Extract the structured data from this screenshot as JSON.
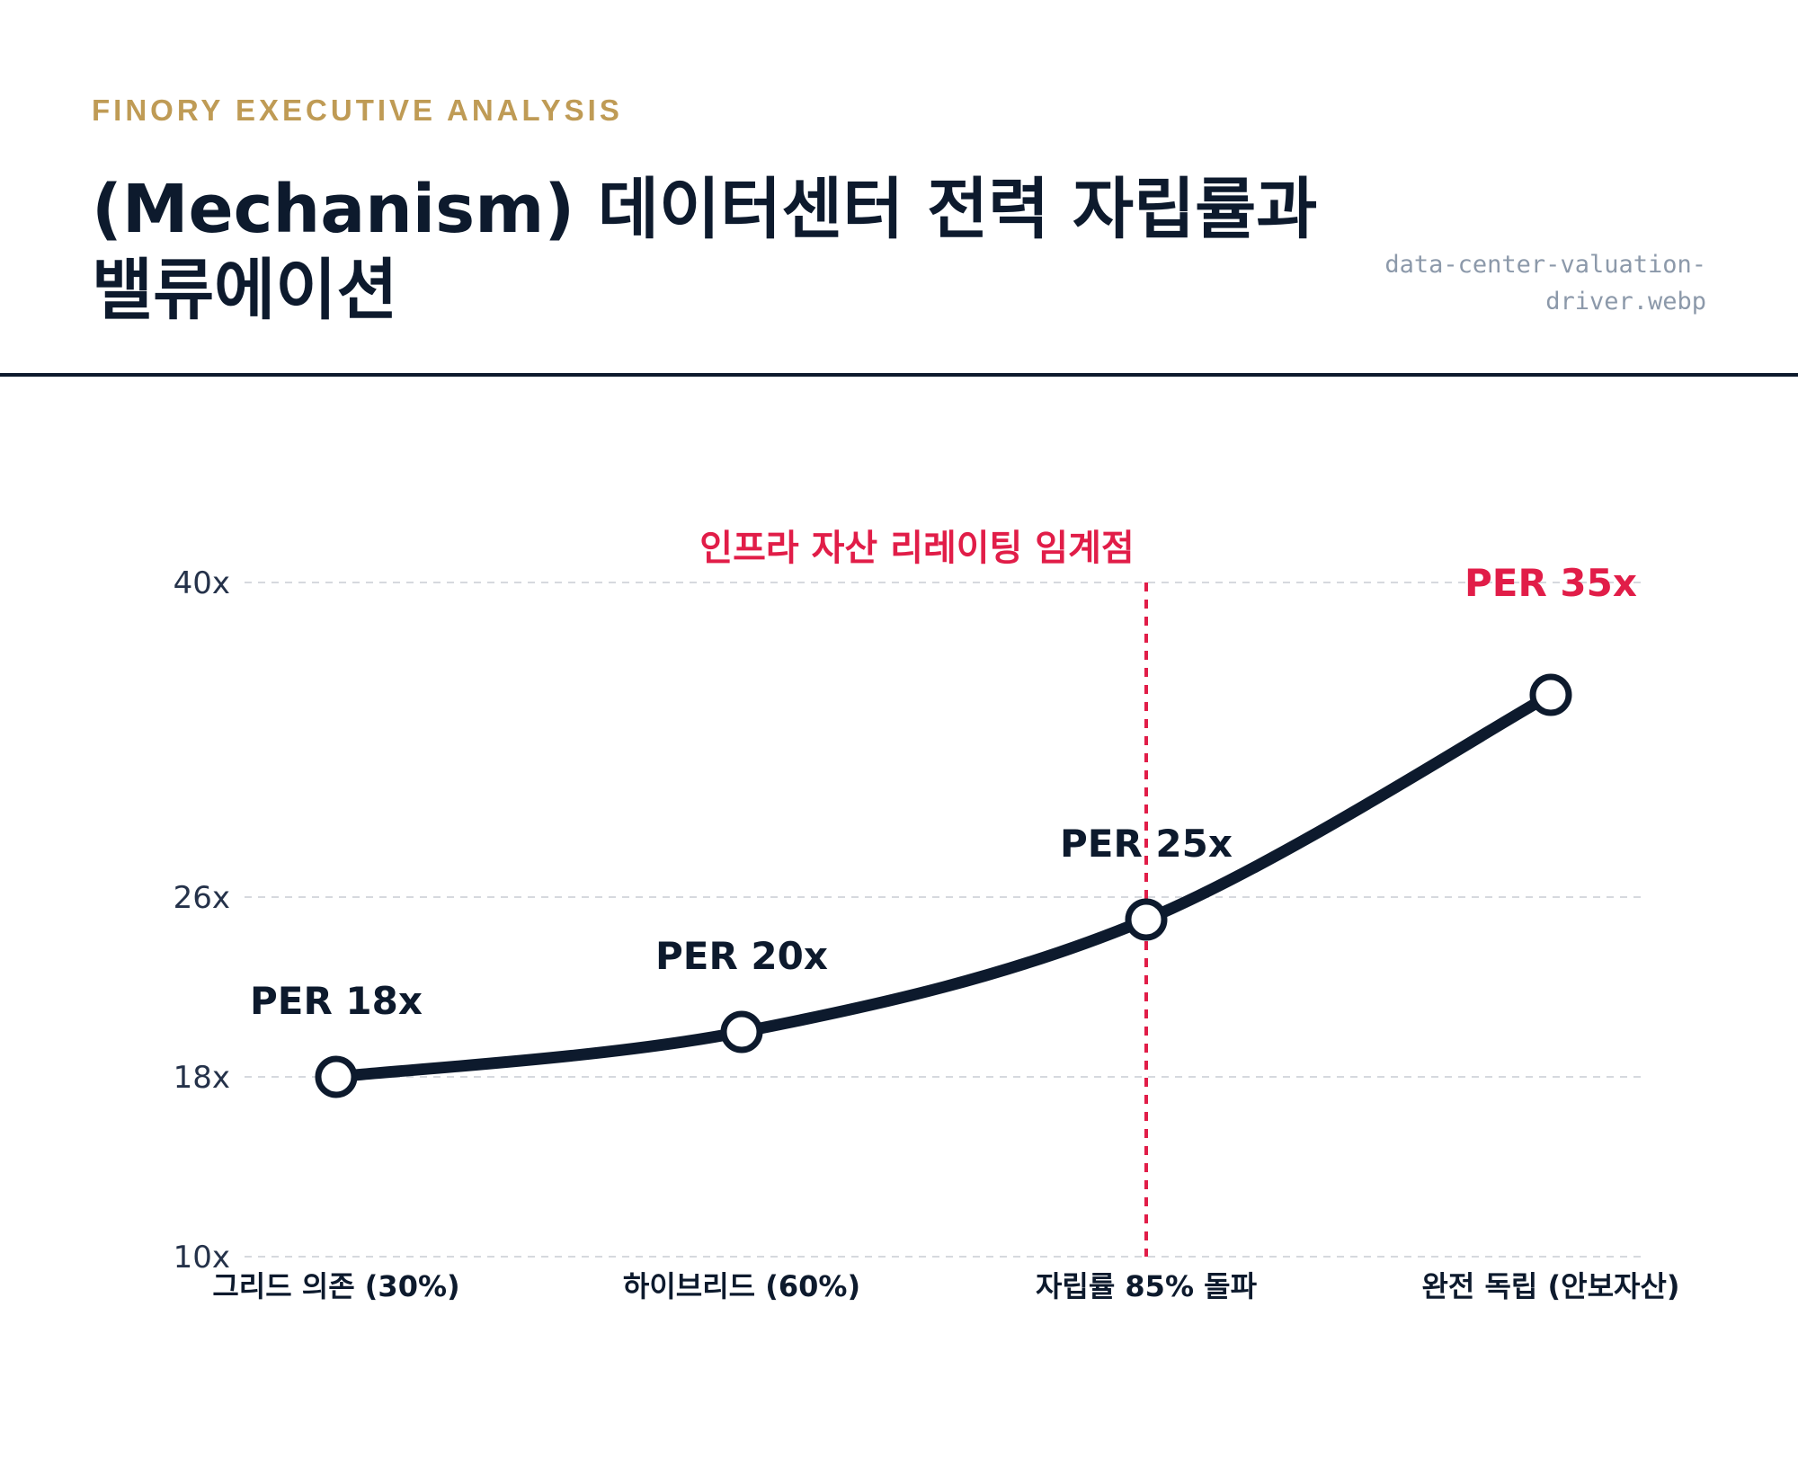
{
  "header": {
    "eyebrow": "FINORY EXECUTIVE ANALYSIS",
    "title": "(Mechanism) 데이터센터 전력 자립률과 밸류에이션",
    "filename": "data-center-valuation-driver.webp"
  },
  "colors": {
    "navy": "#0d1a2d",
    "gold": "#bf9b55",
    "accent": "#e11d48",
    "muted": "#8c99aa",
    "grid": "#d6d9de"
  },
  "chart_data": {
    "type": "line",
    "categories": [
      "그리드 의존 (30%)",
      "하이브리드 (60%)",
      "자립률 85% 돌파",
      "완전 독립 (안보자산)"
    ],
    "values": [
      18,
      20,
      25,
      35
    ],
    "labels": [
      "PER 18x",
      "PER 20x",
      "PER 25x",
      "PER 35x"
    ],
    "highlight_index": 3,
    "yticks": [
      10,
      18,
      26,
      40
    ],
    "ytick_labels": [
      "10x",
      "18x",
      "26x",
      "40x"
    ],
    "ylim": [
      10,
      40
    ],
    "grid": true,
    "annotation": {
      "text": "인프라 자산 리레이팅 임계점",
      "at_category_index": 2
    }
  }
}
